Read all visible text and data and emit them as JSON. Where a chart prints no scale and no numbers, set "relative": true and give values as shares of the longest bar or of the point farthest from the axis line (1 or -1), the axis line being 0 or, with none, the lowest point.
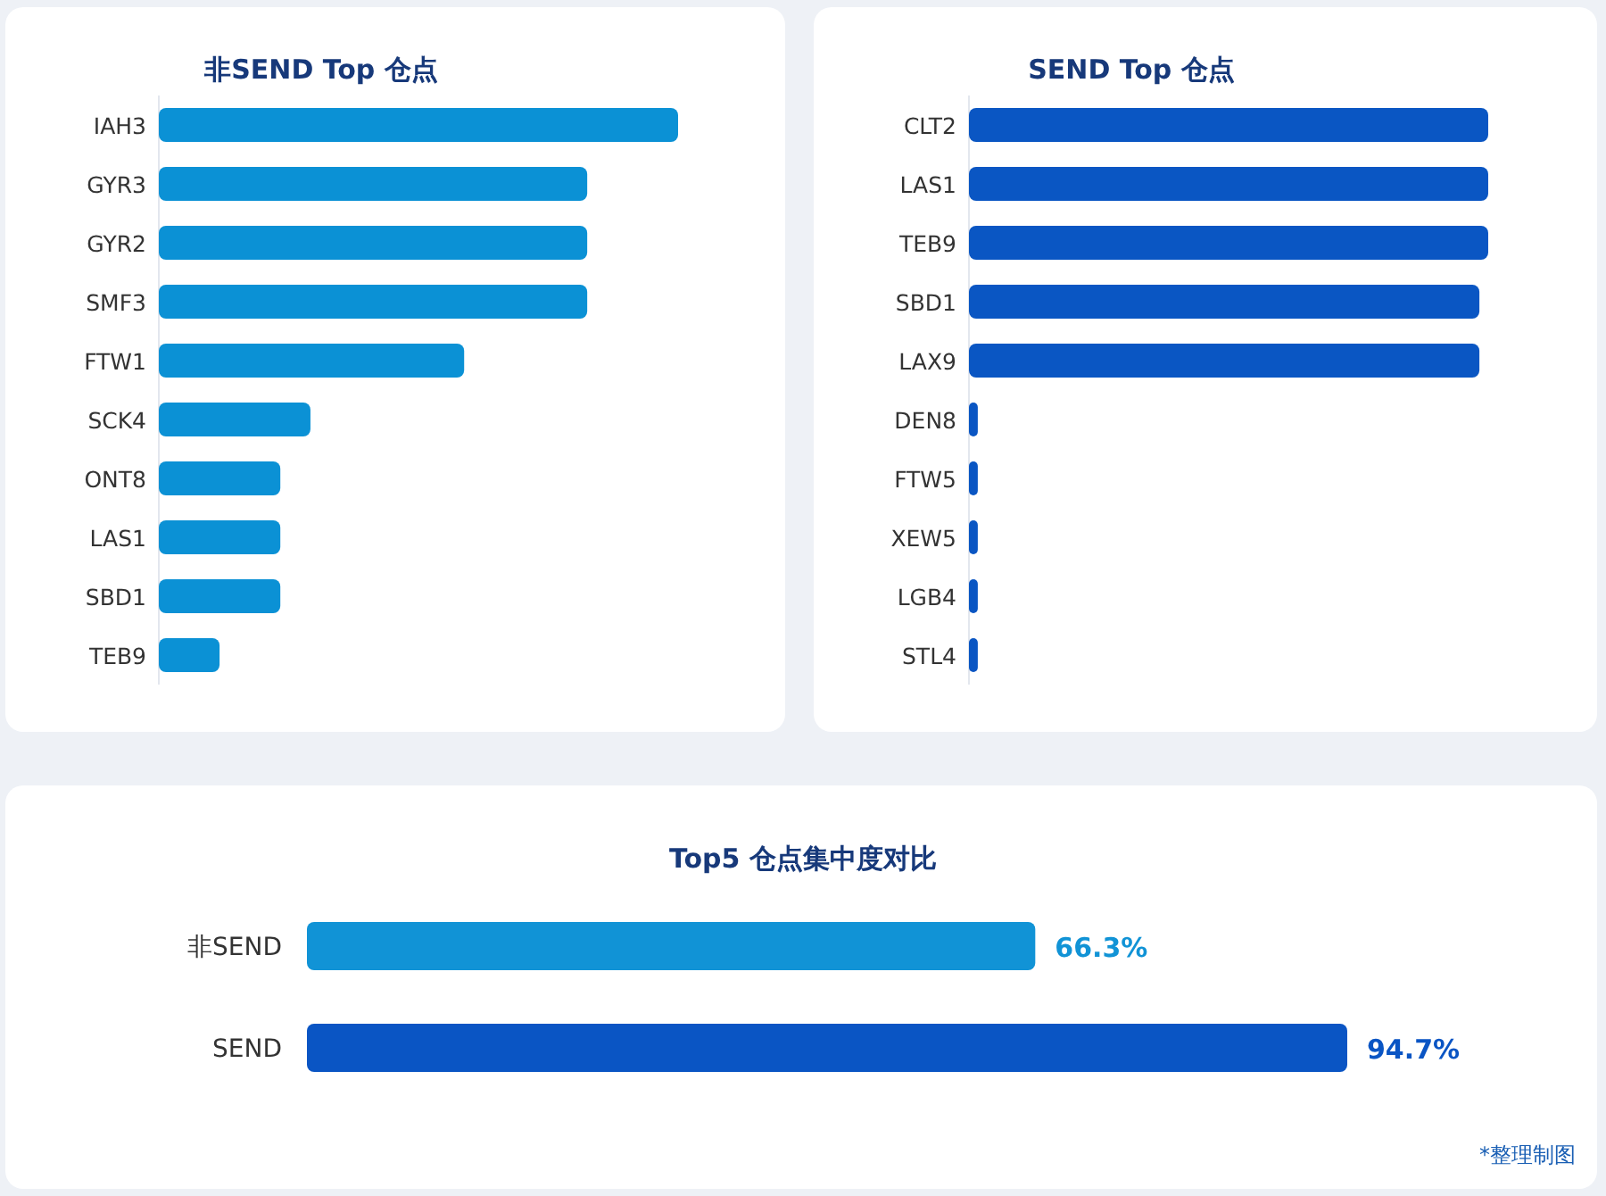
{
  "chart_data": [
    {
      "type": "bar",
      "orientation": "horizontal",
      "relative": true,
      "title": "非SEND Top 仓点",
      "categories": [
        "IAH3",
        "GYR3",
        "GYR2",
        "SMF3",
        "FTW1",
        "SCK4",
        "ONT8",
        "LAS1",
        "SBD1",
        "TEB9"
      ],
      "series": [
        {
          "color": "#0b91d5",
          "values": [
            1,
            0.825,
            0.825,
            0.825,
            0.588,
            0.292,
            0.234,
            0.234,
            0.234,
            0.117
          ]
        }
      ]
    },
    {
      "type": "bar",
      "orientation": "horizontal",
      "relative": true,
      "title": "SEND Top 仓点",
      "categories": [
        "CLT2",
        "LAS1",
        "TEB9",
        "SBD1",
        "LAX9",
        "DEN8",
        "FTW5",
        "XEW5",
        "LGB4",
        "STL4"
      ],
      "series": [
        {
          "color": "#0a56c3",
          "values": [
            1,
            1,
            1,
            0.983,
            0.983,
            0.017,
            0.017,
            0.017,
            0.017,
            0.017
          ]
        }
      ]
    },
    {
      "type": "bar",
      "orientation": "horizontal",
      "title": "Top5 仓点集中度对比",
      "categories": [
        "非SEND",
        "SEND"
      ],
      "values": [
        66.3,
        94.7
      ],
      "colors": [
        "#1193d6",
        "#0a55c4"
      ],
      "value_labels": [
        "66.3%",
        "94.7%"
      ],
      "annotations": [
        "*整理制图"
      ]
    }
  ]
}
